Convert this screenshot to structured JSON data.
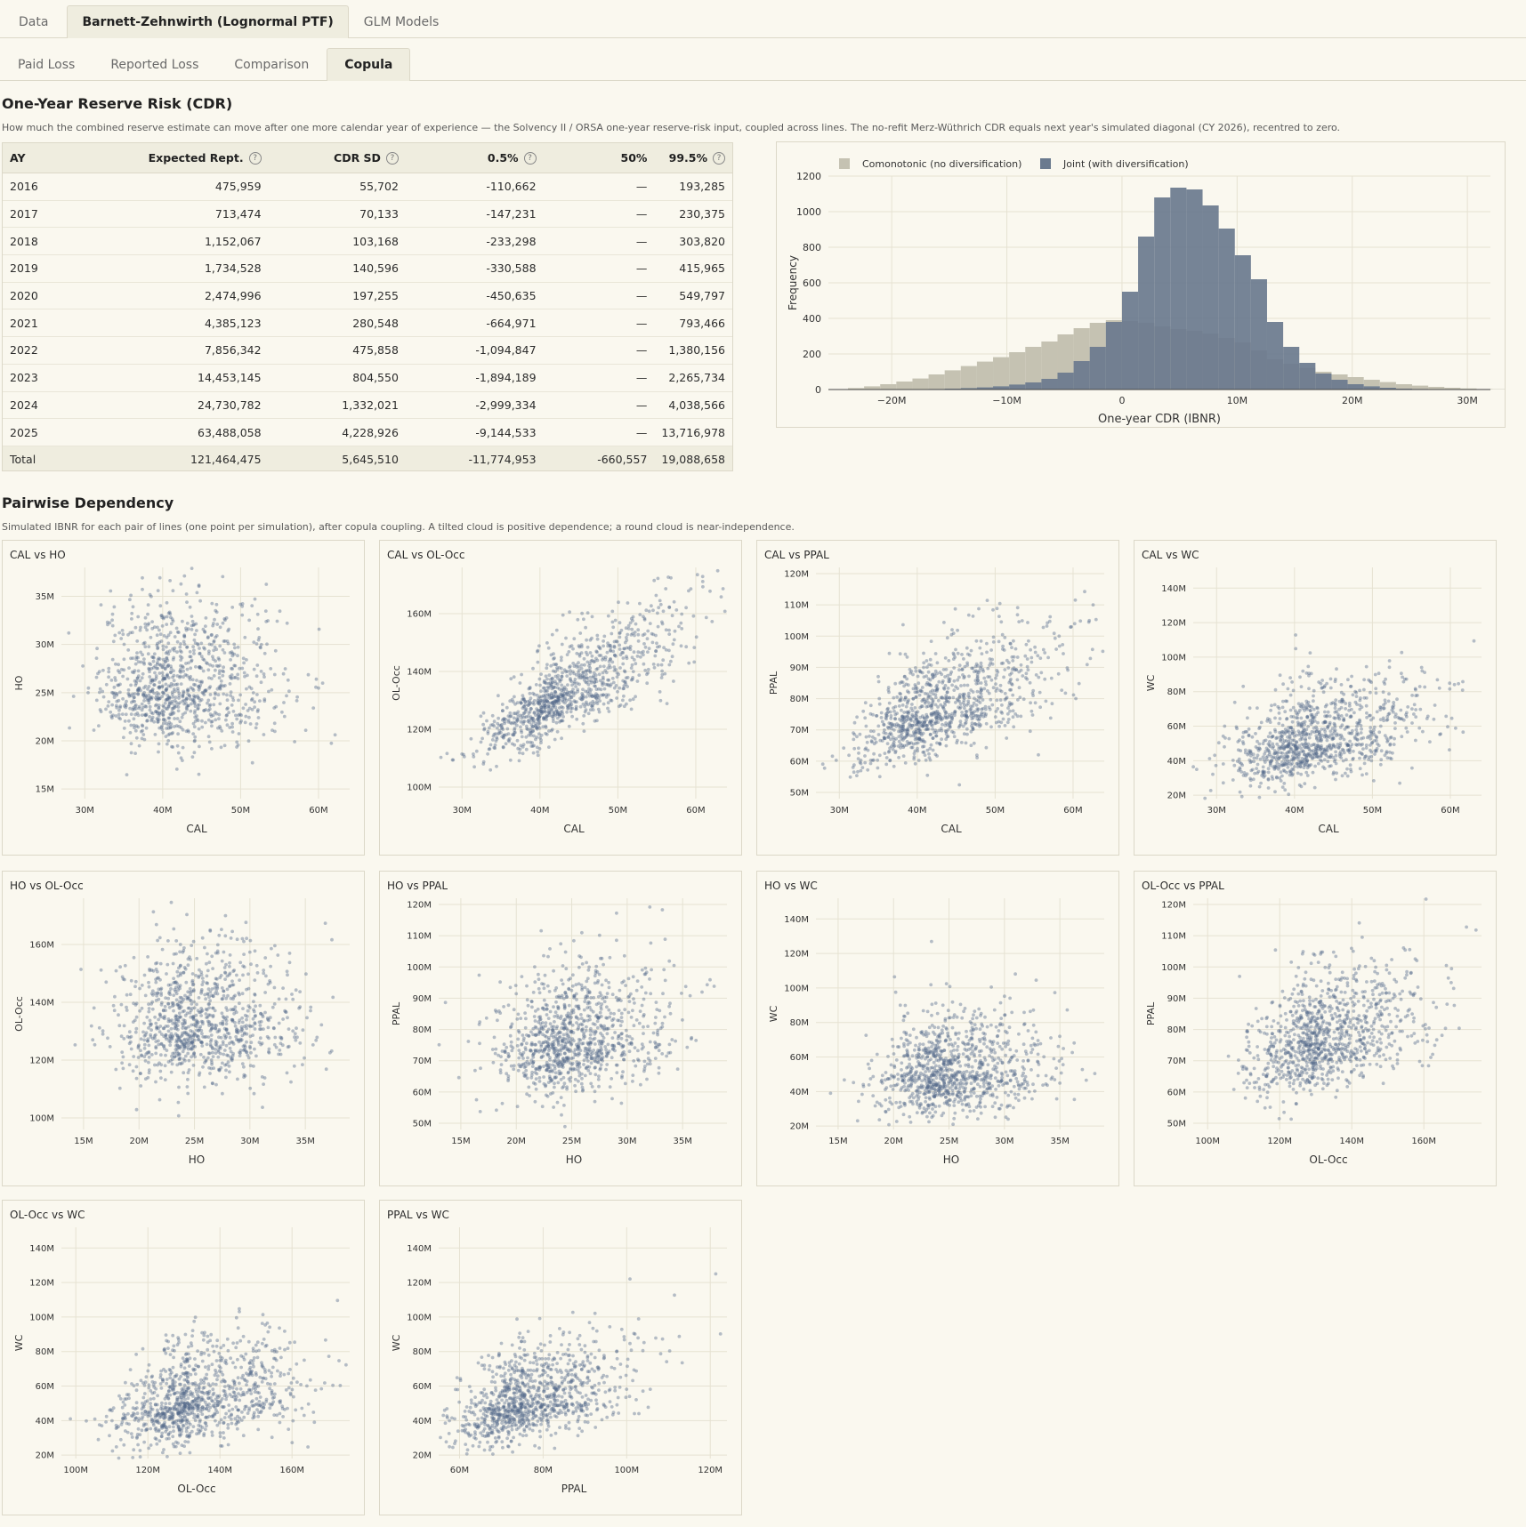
{
  "tabs_top": [
    "Data",
    "Barnett-Zehnwirth (Lognormal PTF)",
    "GLM Models"
  ],
  "tabs_top_active": 1,
  "tabs_sub": [
    "Paid Loss",
    "Reported Loss",
    "Comparison",
    "Copula"
  ],
  "tabs_sub_active": 3,
  "cdr": {
    "title": "One-Year Reserve Risk (CDR)",
    "description": "How much the combined reserve estimate can move after one more calendar year of experience — the Solvency II / ORSA one-year reserve-risk input, coupled across lines. The no-refit Merz-Wüthrich CDR equals next year's simulated diagonal (CY 2026), recentred to zero.",
    "columns": [
      "AY",
      "Expected Rept.",
      "CDR SD",
      "0.5%",
      "50%",
      "99.5%"
    ],
    "help_icon": "?",
    "rows": [
      [
        "2016",
        "475,959",
        "55,702",
        "-110,662",
        "—",
        "193,285"
      ],
      [
        "2017",
        "713,474",
        "70,133",
        "-147,231",
        "—",
        "230,375"
      ],
      [
        "2018",
        "1,152,067",
        "103,168",
        "-233,298",
        "—",
        "303,820"
      ],
      [
        "2019",
        "1,734,528",
        "140,596",
        "-330,588",
        "—",
        "415,965"
      ],
      [
        "2020",
        "2,474,996",
        "197,255",
        "-450,635",
        "—",
        "549,797"
      ],
      [
        "2021",
        "4,385,123",
        "280,548",
        "-664,971",
        "—",
        "793,466"
      ],
      [
        "2022",
        "7,856,342",
        "475,858",
        "-1,094,847",
        "—",
        "1,380,156"
      ],
      [
        "2023",
        "14,453,145",
        "804,550",
        "-1,894,189",
        "—",
        "2,265,734"
      ],
      [
        "2024",
        "24,730,782",
        "1,332,021",
        "-2,999,334",
        "—",
        "4,038,566"
      ],
      [
        "2025",
        "63,488,058",
        "4,228,926",
        "-9,144,533",
        "—",
        "13,716,978"
      ]
    ],
    "total": [
      "Total",
      "121,464,475",
      "5,645,510",
      "-11,774,953",
      "-660,557",
      "19,088,658"
    ]
  },
  "pairwise": {
    "title": "Pairwise Dependency",
    "description": "Simulated IBNR for each pair of lines (one point per simulation), after copula coupling. A tilted cloud is positive dependence; a round cloud is near-independence."
  },
  "colors": {
    "comonotonic": "#c5c2b2",
    "joint": "#6a7a8e",
    "point": "#54688a",
    "grid": "#e6e2d2",
    "axis": "#333333"
  },
  "chart_data": [
    {
      "type": "bar",
      "subtype": "histogram",
      "xlabel": "One-year CDR (IBNR)",
      "ylabel": "Frequency",
      "xticks": [
        -20,
        -10,
        0,
        10,
        20,
        30
      ],
      "xtick_labels": [
        "−20M",
        "−10M",
        "0",
        "10M",
        "20M",
        "30M"
      ],
      "ylim": [
        0,
        1200
      ],
      "yticks": [
        0,
        200,
        400,
        600,
        800,
        1000,
        1200
      ],
      "xlim": [
        -25.5,
        32
      ],
      "bin_width": 1.4,
      "bin_start": -25.2,
      "legend_position": "top",
      "series": [
        {
          "name": "Comonotonic (no diversification)",
          "color": "#c5c2b2",
          "values": [
            2,
            8,
            18,
            30,
            45,
            62,
            85,
            108,
            132,
            157,
            182,
            210,
            240,
            270,
            310,
            345,
            375,
            390,
            385,
            375,
            355,
            340,
            330,
            315,
            290,
            265,
            220,
            170,
            145,
            122,
            100,
            85,
            70,
            55,
            42,
            30,
            22,
            15,
            10,
            6,
            3,
            2
          ]
        },
        {
          "name": "Joint (with diversification)",
          "color": "#6a7a8e",
          "values": [
            0,
            0,
            0,
            0,
            1,
            2,
            3,
            5,
            8,
            12,
            18,
            28,
            40,
            60,
            95,
            160,
            240,
            380,
            550,
            860,
            1080,
            1135,
            1125,
            1035,
            905,
            755,
            620,
            380,
            240,
            150,
            90,
            55,
            30,
            18,
            10,
            5,
            3,
            1,
            1,
            0,
            0,
            0
          ]
        }
      ]
    },
    {
      "type": "scatter",
      "title": "CAL vs HO",
      "xlabel": "CAL",
      "ylabel": "HO",
      "xlim": [
        27,
        64
      ],
      "ylim": [
        14,
        38
      ],
      "xticks": [
        30,
        40,
        50,
        60
      ],
      "yticks": [
        15,
        20,
        25,
        30,
        35
      ],
      "x_mean": 41.5,
      "y_mean": 25.5,
      "x_sd": 5.5,
      "y_sd": 3.7,
      "correlation": 0.05
    },
    {
      "type": "scatter",
      "title": "CAL vs OL-Occ",
      "xlabel": "CAL",
      "ylabel": "OL-Occ",
      "xlim": [
        27,
        64
      ],
      "ylim": [
        96,
        176
      ],
      "xticks": [
        30,
        40,
        50,
        60
      ],
      "yticks": [
        100,
        120,
        140,
        160
      ],
      "x_mean": 43,
      "y_mean": 132,
      "x_sd": 6,
      "y_sd": 12,
      "correlation": 0.8
    },
    {
      "type": "scatter",
      "title": "CAL vs PPAL",
      "xlabel": "CAL",
      "ylabel": "PPAL",
      "xlim": [
        27,
        64
      ],
      "ylim": [
        48,
        122
      ],
      "xticks": [
        30,
        40,
        50,
        60
      ],
      "yticks": [
        50,
        60,
        70,
        80,
        90,
        100,
        110,
        120
      ],
      "x_mean": 42.5,
      "y_mean": 76,
      "x_sd": 6,
      "y_sd": 10,
      "correlation": 0.6
    },
    {
      "type": "scatter",
      "title": "CAL vs WC",
      "xlabel": "CAL",
      "ylabel": "WC",
      "xlim": [
        27,
        64
      ],
      "ylim": [
        18,
        152
      ],
      "xticks": [
        30,
        40,
        50,
        60
      ],
      "yticks": [
        20,
        40,
        60,
        80,
        100,
        120,
        140
      ],
      "x_mean": 42,
      "y_mean": 50,
      "x_sd": 6,
      "y_sd": 15,
      "correlation": 0.45
    },
    {
      "type": "scatter",
      "title": "HO vs OL-Occ",
      "xlabel": "HO",
      "ylabel": "OL-Occ",
      "xlim": [
        13,
        39
      ],
      "ylim": [
        96,
        176
      ],
      "xticks": [
        15,
        20,
        25,
        30,
        35
      ],
      "yticks": [
        100,
        120,
        140,
        160
      ],
      "x_mean": 25,
      "y_mean": 132,
      "x_sd": 3.8,
      "y_sd": 12,
      "correlation": 0.05
    },
    {
      "type": "scatter",
      "title": "HO vs PPAL",
      "xlabel": "HO",
      "ylabel": "PPAL",
      "xlim": [
        13,
        39
      ],
      "ylim": [
        48,
        122
      ],
      "xticks": [
        15,
        20,
        25,
        30,
        35
      ],
      "yticks": [
        50,
        60,
        70,
        80,
        90,
        100,
        110,
        120
      ],
      "x_mean": 25,
      "y_mean": 76,
      "x_sd": 3.8,
      "y_sd": 10,
      "correlation": 0.2
    },
    {
      "type": "scatter",
      "title": "HO vs WC",
      "xlabel": "HO",
      "ylabel": "WC",
      "xlim": [
        13,
        39
      ],
      "ylim": [
        18,
        152
      ],
      "xticks": [
        15,
        20,
        25,
        30,
        35
      ],
      "yticks": [
        20,
        40,
        60,
        80,
        100,
        120,
        140
      ],
      "x_mean": 25,
      "y_mean": 50,
      "x_sd": 3.8,
      "y_sd": 15,
      "correlation": 0.15
    },
    {
      "type": "scatter",
      "title": "OL-Occ vs PPAL",
      "xlabel": "OL-Occ",
      "ylabel": "PPAL",
      "xlim": [
        96,
        176
      ],
      "ylim": [
        48,
        122
      ],
      "xticks": [
        100,
        120,
        140,
        160
      ],
      "yticks": [
        50,
        60,
        70,
        80,
        90,
        100,
        110,
        120
      ],
      "x_mean": 132,
      "y_mean": 76,
      "x_sd": 12,
      "y_sd": 10,
      "correlation": 0.45
    },
    {
      "type": "scatter",
      "title": "OL-Occ vs WC",
      "xlabel": "OL-Occ",
      "ylabel": "WC",
      "xlim": [
        96,
        176
      ],
      "ylim": [
        18,
        152
      ],
      "xticks": [
        100,
        120,
        140,
        160
      ],
      "yticks": [
        20,
        40,
        60,
        80,
        100,
        120,
        140
      ],
      "x_mean": 132,
      "y_mean": 50,
      "x_sd": 12,
      "y_sd": 15,
      "correlation": 0.35
    },
    {
      "type": "scatter",
      "title": "PPAL vs WC",
      "xlabel": "PPAL",
      "ylabel": "WC",
      "xlim": [
        55,
        124
      ],
      "ylim": [
        18,
        152
      ],
      "xticks": [
        60,
        80,
        100,
        120
      ],
      "yticks": [
        20,
        40,
        60,
        80,
        100,
        120,
        140
      ],
      "x_mean": 76,
      "y_mean": 50,
      "x_sd": 10,
      "y_sd": 15,
      "correlation": 0.5
    }
  ]
}
